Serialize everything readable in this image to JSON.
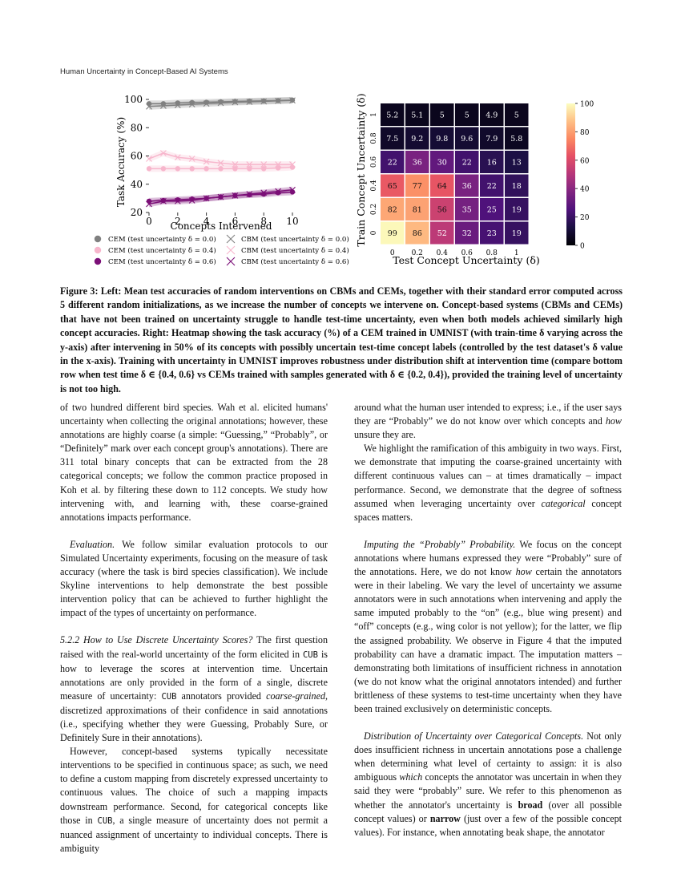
{
  "running_head": "Human Uncertainty in Concept-Based AI Systems",
  "chart_data": [
    {
      "type": "line",
      "xlabel": "Concepts Intervened",
      "ylabel": "Task Accuracy (%)",
      "xlim": [
        0,
        10
      ],
      "ylim": [
        20,
        100
      ],
      "x_ticks": [
        "0",
        "2",
        "4",
        "6",
        "8",
        "10"
      ],
      "y_ticks": [
        "20",
        "40",
        "60",
        "80",
        "100"
      ],
      "x": [
        0,
        1,
        2,
        3,
        4,
        5,
        6,
        7,
        8,
        9,
        10
      ],
      "series": [
        {
          "name": "CEM (test uncertainty δ = 0.0)",
          "model": "CEM",
          "color": "#808080",
          "marker": "circle",
          "values": [
            97,
            97,
            97.5,
            97.8,
            98,
            98.3,
            98.6,
            98.8,
            99,
            99.2,
            99.5
          ]
        },
        {
          "name": "CEM (test uncertainty δ = 0.4)",
          "model": "CEM",
          "color": "#f7b6cc",
          "marker": "circle",
          "values": [
            51,
            51,
            51,
            51,
            51,
            51,
            51,
            51,
            51,
            51.5,
            52
          ]
        },
        {
          "name": "CEM (test uncertainty δ = 0.6)",
          "model": "CEM",
          "color": "#7b0f77",
          "marker": "circle",
          "values": [
            28,
            28.5,
            29,
            29.5,
            30,
            31,
            32,
            32.5,
            33,
            34,
            34.5
          ]
        },
        {
          "name": "CBM (test uncertainty δ = 0.0)",
          "model": "CBM",
          "color": "#808080",
          "marker": "x",
          "values": [
            95,
            95.5,
            96,
            96.5,
            97,
            97.5,
            98,
            98.3,
            98.6,
            99,
            99.3
          ]
        },
        {
          "name": "CBM (test uncertainty δ = 0.4)",
          "model": "CBM",
          "color": "#f7b6cc",
          "marker": "x",
          "values": [
            58,
            62,
            59,
            58,
            56,
            55,
            54,
            54,
            54,
            54,
            54
          ]
        },
        {
          "name": "CBM (test uncertainty δ = 0.6)",
          "model": "CBM",
          "color": "#7b0f77",
          "marker": "x",
          "values": [
            26,
            28,
            28,
            28.5,
            30,
            31,
            32,
            33,
            34,
            35,
            36
          ]
        }
      ]
    },
    {
      "type": "heatmap",
      "xlabel": "Test Concept Uncertainty (δ)",
      "ylabel": "Train Concept Uncertainty (δ)",
      "x_ticks": [
        "0",
        "0.2",
        "0.4",
        "0.6",
        "0.8",
        "1"
      ],
      "y_ticks": [
        "1",
        "0.8",
        "0.6",
        "0.4",
        "0.2",
        "0"
      ],
      "values": [
        [
          5.2,
          5.1,
          5,
          5,
          4.9,
          5
        ],
        [
          7.5,
          9.2,
          9.8,
          9.6,
          7.9,
          5.8
        ],
        [
          22,
          36,
          30,
          22,
          16,
          13
        ],
        [
          65,
          77,
          64,
          36,
          22,
          18
        ],
        [
          82,
          81,
          56,
          35,
          25,
          19
        ],
        [
          99,
          86,
          52,
          32,
          23,
          19
        ]
      ],
      "colorbar_range": [
        0,
        100
      ],
      "colorbar_ticks": [
        "0",
        "20",
        "40",
        "60",
        "80",
        "100"
      ],
      "colormap": "magma"
    }
  ],
  "caption": "Figure 3: Left: Mean test accuracies of random interventions on CBMs and CEMs, together with their standard error computed across 5 different random initializations, as we increase the number of concepts we intervene on. Concept-based systems (CBMs and CEMs) that have not been trained on uncertainty struggle to handle test-time uncertainty, even when both models achieved similarly high concept accuracies. Right: Heatmap showing the task accuracy (%) of a CEM trained in UMNIST (with train-time δ varying across the y-axis) after intervening in 50% of its concepts with possibly uncertain test-time concept labels (controlled by the test dataset's δ value in the x-axis). Training with uncertainty in UMNIST improves robustness under distribution shift at intervention time (compare bottom row when test time δ ∈ {0.4, 0.6} vs CEMs trained with samples generated with δ ∈ {0.2, 0.4}), provided the training level of uncertainty is not too high.",
  "left_column": {
    "p1": "of two hundred different bird species. Wah et al. elicited humans' uncertainty when collecting the original annotations; however, these annotations are highly coarse (a simple: “Guessing,” “Probably”, or “Definitely” mark over each concept group's annotations). There are 311 total binary concepts that can be extracted from the 28 categorical concepts; we follow the common practice proposed in Koh et al. by filtering these down to 112 concepts. We study how intervening with, and learning with, these coarse-grained annotations impacts performance.",
    "p2_head": "Evaluation.",
    "p2": "We follow similar evaluation protocols to our Simulated Uncertainty experiments, focusing on the measure of task accuracy (where the task is bird species classification). We include Skyline interventions to help demonstrate the best possible intervention policy that can be achieved to further highlight the impact of the types of uncertainty on performance.",
    "p3_head": "5.2.2   How to Use Discrete Uncertainty Scores?",
    "p3_a": "The first question raised with the real-world uncertainty of the form elicited in",
    "p3_cub1": "CUB",
    "p3_b": "is how to leverage the scores at intervention time. Uncertain annotations are only provided in the form of a single, discrete measure of uncertainty:",
    "p3_cub2": "CUB",
    "p3_c": "annotators provided",
    "p3_em": "coarse-grained",
    "p3_d": ", discretized approximations of their confidence in said annotations (i.e., specifying whether they were Guessing, Probably Sure, or Definitely Sure in their annotations).",
    "p4_a": "However, concept-based systems typically necessitate interventions to be specified in continuous space; as such, we need to define a custom mapping from discretely expressed uncertainty to continuous values. The choice of such a mapping impacts downstream performance. Second, for categorical concepts like those in",
    "p4_cub": "CUB",
    "p4_b": ", a single measure of uncertainty does not permit a nuanced assignment of uncertainty to individual concepts. There is ambiguity"
  },
  "right_column": {
    "p1_a": "around what the human user intended to express; i.e., if the user says they are “Probably” we do not know over which concepts and",
    "p1_em": "how",
    "p1_b": "unsure they are.",
    "p2_a": "We highlight the ramification of this ambiguity in two ways. First, we demonstrate that imputing the coarse-grained uncertainty with different continuous values can – at times dramatically – impact performance. Second, we demonstrate that the degree of softness assumed when leveraging uncertainty over",
    "p2_em": "categorical",
    "p2_b": "concept spaces matters.",
    "p3_head": "Imputing the “Probably” Probability.",
    "p3_a": "We focus on the concept annotations where humans expressed they were “Probably” sure of the annotations. Here, we do not know",
    "p3_em": "how",
    "p3_b": "certain the annotators were in their labeling. We vary the level of uncertainty we assume annotators were in such annotations when intervening and apply the same imputed probably to the “on” (e.g., blue wing present) and “off” concepts (e.g., wing color is not yellow); for the latter, we flip the assigned probability. We observe in Figure 4 that the imputed probability can have a dramatic impact. The imputation matters – demonstrating both limitations of insufficient richness in annotation (we do not know what the original annotators intended) and further brittleness of these systems to test-time uncertainty when they have been trained exclusively on deterministic concepts.",
    "p4_head": "Distribution of Uncertainty over Categorical Concepts.",
    "p4_a": "Not only does insufficient richness in uncertain annotations pose a challenge when determining what level of certainty to assign: it is also ambiguous",
    "p4_em": "which",
    "p4_b": "concepts the annotator was uncertain in when they said they were “probably” sure. We refer to this phenomenon as whether the annotator's uncertainty is",
    "p4_broad": "broad",
    "p4_c": "(over all possible concept values) or",
    "p4_narrow": "narrow",
    "p4_d": "(just over a few of the possible concept values). For instance, when annotating beak shape, the annotator"
  }
}
